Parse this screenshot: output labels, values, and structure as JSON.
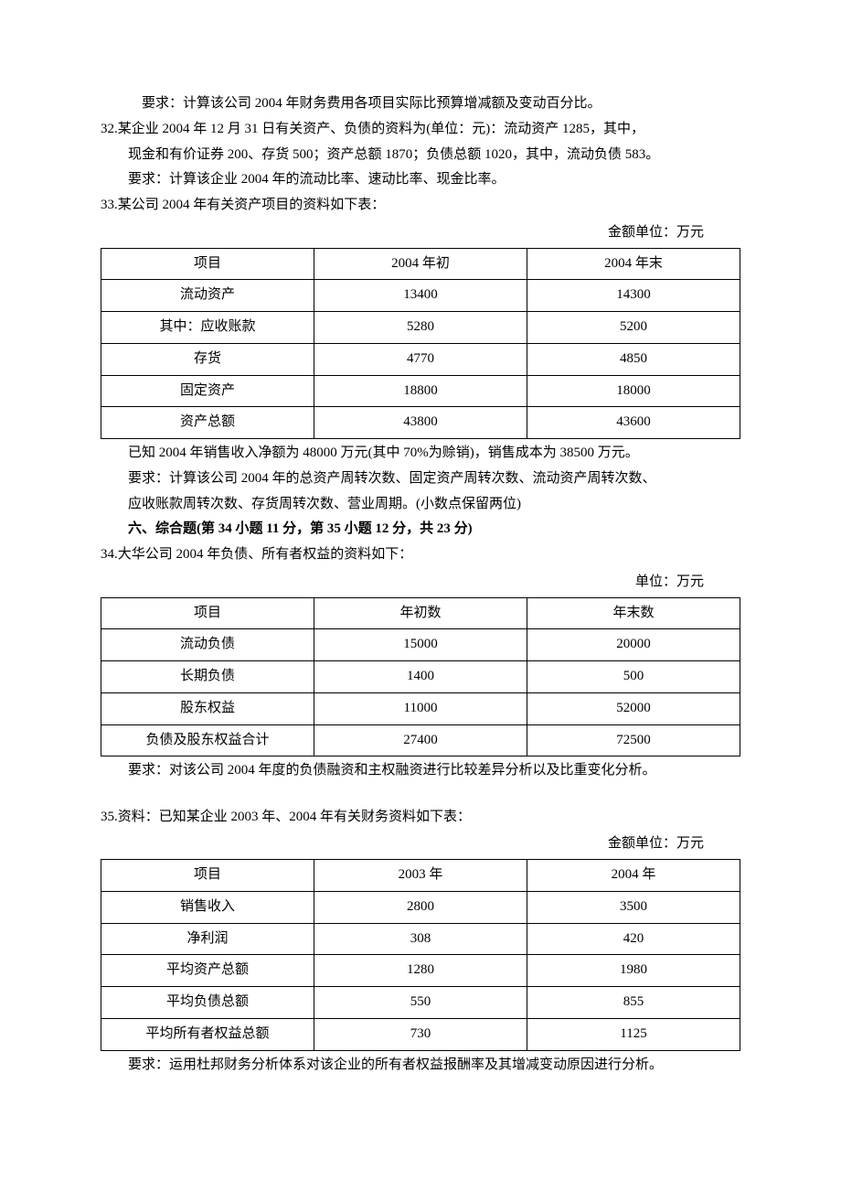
{
  "q31_tail": "要求：计算该公司 2004 年财务费用各项目实际比预算增减额及变动百分比。",
  "q32": {
    "line1": "32.某企业 2004 年 12 月 31 日有关资产、负债的资料为(单位：元)：流动资产 1285，其中，",
    "line2": "现金和有价证券 200、存货 500；资产总额 1870；负债总额 1020，其中，流动负债 583。",
    "line3": "要求：计算该企业 2004 年的流动比率、速动比率、现金比率。"
  },
  "q33": {
    "intro": "33.某公司 2004 年有关资产项目的资料如下表：",
    "unit": "金额单位：万元",
    "headers": [
      "项目",
      "2004 年初",
      "2004 年末"
    ],
    "rows": [
      [
        "流动资产",
        "13400",
        "14300"
      ],
      [
        "其中：应收账款",
        "5280",
        "5200"
      ],
      [
        "存货",
        "4770",
        "4850"
      ],
      [
        "固定资产",
        "18800",
        "18000"
      ],
      [
        "资产总额",
        "43800",
        "43600"
      ]
    ],
    "after1": "已知 2004 年销售收入净额为 48000 万元(其中 70%为赊销)，销售成本为 38500 万元。",
    "after2": "要求：计算该公司 2004 年的总资产周转次数、固定资产周转次数、流动资产周转次数、",
    "after3": "应收账款周转次数、存货周转次数、营业周期。(小数点保留两位)"
  },
  "section6": "六、综合题(第 34 小题 11 分，第 35 小题 12 分，共 23 分)",
  "q34": {
    "intro": "34.大华公司 2004 年负债、所有者权益的资料如下：",
    "unit": "单位：万元",
    "headers": [
      "项目",
      "年初数",
      "年末数"
    ],
    "rows": [
      [
        "流动负债",
        "15000",
        "20000"
      ],
      [
        "长期负债",
        "1400",
        "500"
      ],
      [
        "股东权益",
        "11000",
        "52000"
      ],
      [
        "负债及股东权益合计",
        "27400",
        "72500"
      ]
    ],
    "after": "要求：对该公司 2004 年度的负债融资和主权融资进行比较差异分析以及比重变化分析。"
  },
  "q35": {
    "intro": "35.资料：已知某企业 2003 年、2004 年有关财务资料如下表：",
    "unit": "金额单位：万元",
    "headers": [
      "项目",
      "2003 年",
      "2004 年"
    ],
    "rows": [
      [
        "销售收入",
        "2800",
        "3500"
      ],
      [
        "净利润",
        "308",
        "420"
      ],
      [
        "平均资产总额",
        "1280",
        "1980"
      ],
      [
        "平均负债总额",
        "550",
        "855"
      ],
      [
        "平均所有者权益总额",
        "730",
        "1125"
      ]
    ],
    "after": "要求：运用杜邦财务分析体系对该企业的所有者权益报酬率及其增减变动原因进行分析。"
  }
}
